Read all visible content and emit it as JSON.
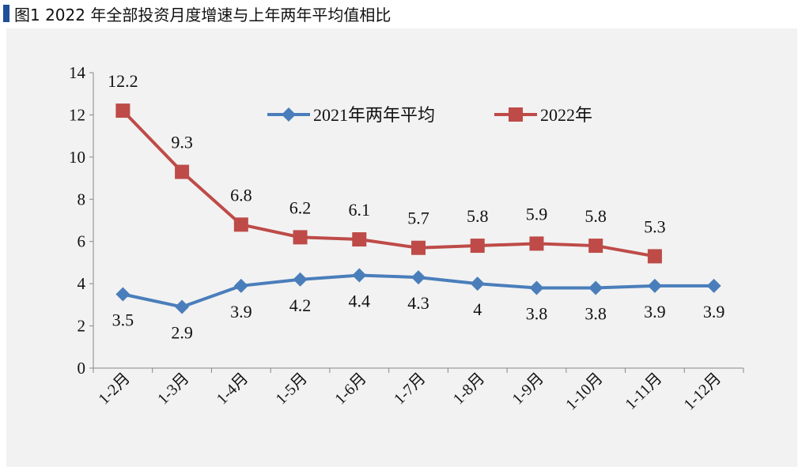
{
  "title": "图1 2022 年全部投资月度增速与上年两年平均值相比",
  "chart_data": {
    "type": "line",
    "title": "图1 2022 年全部投资月度增速与上年两年平均值相比",
    "categories": [
      "1-2月",
      "1-3月",
      "1-4月",
      "1-5月",
      "1-6月",
      "1-7月",
      "1-8月",
      "1-9月",
      "1-10月",
      "1-11月",
      "1-12月"
    ],
    "series": [
      {
        "name": "2021年两年平均",
        "color": "#4a7ebb",
        "marker": "diamond",
        "values": [
          3.5,
          2.9,
          3.9,
          4.2,
          4.4,
          4.3,
          4,
          3.8,
          3.8,
          3.9,
          3.9
        ],
        "labels": [
          "3.5",
          "2.9",
          "3.9",
          "4.2",
          "4.4",
          "4.3",
          "4",
          "3.8",
          "3.8",
          "3.9",
          "3.9"
        ]
      },
      {
        "name": "2022年",
        "color": "#be4b48",
        "marker": "square",
        "values": [
          12.2,
          9.3,
          6.8,
          6.2,
          6.1,
          5.7,
          5.8,
          5.9,
          5.8,
          5.3,
          null
        ],
        "labels": [
          "12.2",
          "9.3",
          "6.8",
          "6.2",
          "6.1",
          "5.7",
          "5.8",
          "5.9",
          "5.8",
          "5.3",
          ""
        ]
      }
    ],
    "ylim": [
      0,
      14
    ],
    "yticks": [
      "0",
      "2",
      "4",
      "6",
      "8",
      "10",
      "12",
      "14"
    ],
    "grid": false,
    "legend": "top"
  }
}
